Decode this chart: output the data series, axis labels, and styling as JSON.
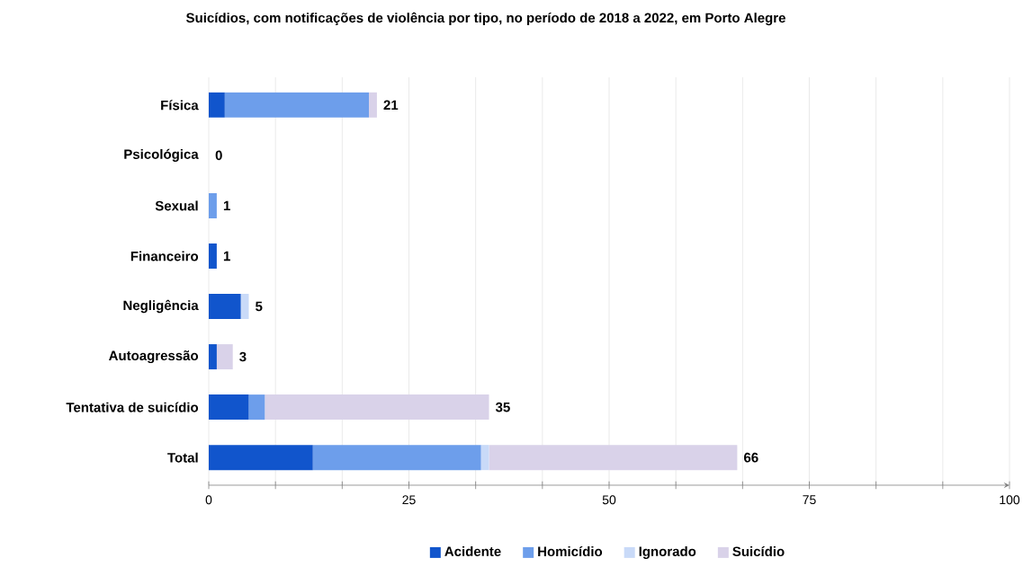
{
  "chart_data": {
    "type": "bar",
    "orientation": "horizontal",
    "stacked": true,
    "title": "Suicídios, com notificações de violência por tipo, no período de 2018 a 2022, em Porto Alegre",
    "categories": [
      "Física",
      "Psicológica",
      "Sexual",
      "Financeiro",
      "Negligência",
      "Autoagressão",
      "Tentativa de suicídio",
      "Total"
    ],
    "series": [
      {
        "name": "Acidente",
        "color": "#1155cc",
        "values": [
          2,
          0,
          0,
          1,
          4,
          1,
          5,
          13
        ]
      },
      {
        "name": "Homicídio",
        "color": "#6d9eeb",
        "values": [
          18,
          0,
          1,
          0,
          0,
          0,
          2,
          21
        ]
      },
      {
        "name": "Ignorado",
        "color": "#c9daf8",
        "values": [
          0,
          0,
          0,
          0,
          1,
          0,
          0,
          1
        ]
      },
      {
        "name": "Suicídio",
        "color": "#d9d2e9",
        "values": [
          1,
          0,
          0,
          0,
          0,
          2,
          28,
          31
        ]
      }
    ],
    "totals": [
      "21",
      "0",
      "1",
      "1",
      "5",
      "3",
      "35",
      "66"
    ],
    "xlim": [
      0,
      100
    ],
    "xticks": [
      0,
      {
        "value": 8.333,
        "label": null
      },
      {
        "value": 16.667,
        "label": null
      },
      25,
      {
        "value": 33.333,
        "label": null
      },
      {
        "value": 41.667,
        "label": null
      },
      50,
      {
        "value": 58.333,
        "label": null
      },
      {
        "value": 66.667,
        "label": null
      },
      75,
      {
        "value": 83.333,
        "label": null
      },
      {
        "value": 91.667,
        "label": null
      },
      100
    ],
    "grid": "x",
    "legend": "bottom"
  }
}
